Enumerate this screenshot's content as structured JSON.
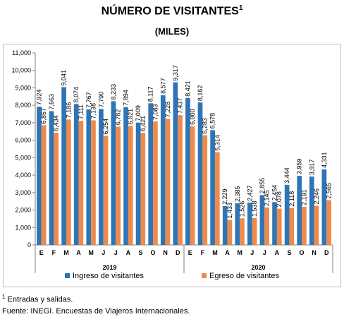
{
  "title": "NÚMERO DE VISITANTES",
  "title_sup": "1",
  "subtitle": "(MILES)",
  "notes": {
    "note1_sup": "1",
    "note1": "Entradas y salidas.",
    "source": "Fuente: INEGI. Encuestas de Viajeros Internacionales."
  },
  "chart_data": {
    "type": "bar",
    "categories": [
      "E",
      "F",
      "M",
      "A",
      "M",
      "J",
      "J",
      "A",
      "S",
      "O",
      "N",
      "D",
      "E",
      "F",
      "M",
      "A",
      "M",
      "J",
      "J",
      "A",
      "S",
      "O",
      "N",
      "D"
    ],
    "groups": [
      {
        "label": "2019",
        "count": 12
      },
      {
        "label": "2020",
        "count": 12
      }
    ],
    "series": [
      {
        "name": "Ingreso de visitantes",
        "color": "#2e75b6",
        "values": [
          7924,
          7663,
          9041,
          8074,
          7767,
          7790,
          8233,
          7894,
          7009,
          8117,
          8577,
          9317,
          8421,
          8162,
          6578,
          2229,
          2385,
          2427,
          2855,
          2454,
          3444,
          3959,
          3917,
          4331
        ],
        "labels": [
          "7,924",
          "7,663",
          "9,041",
          "8,074",
          "7,767",
          "7,790",
          "8,233",
          "7,894",
          "7,009",
          "8,117",
          "8,577",
          "9,317",
          "8,421",
          "8,162",
          "6,578",
          "2,229",
          "2,385",
          "2,427",
          "2,855",
          "2,454",
          "3,444",
          "3,959",
          "3,917",
          "4,331"
        ]
      },
      {
        "name": "Egreso de visitantes",
        "color": "#ed8a4c",
        "values": [
          6857,
          6434,
          7186,
          7111,
          7138,
          6254,
          6782,
          6821,
          6421,
          7083,
          7228,
          7437,
          6800,
          6283,
          5314,
          1433,
          1526,
          1538,
          2145,
          2078,
          2118,
          2191,
          2246,
          2565
        ],
        "labels": [
          "6,857",
          "6,434",
          "7,186",
          "7,111",
          "7,138",
          "6,254",
          "6,782",
          "6,821",
          "6,421",
          "7,083",
          "7,228",
          "7,437",
          "6,800",
          "6,283",
          "5,314",
          "1,433",
          "1,526",
          "1,538",
          "2,145",
          "2,078",
          "2,118",
          "2,191",
          "2,246",
          "2,565"
        ]
      }
    ],
    "ylim": [
      0,
      11000
    ],
    "yticks": [
      0,
      1000,
      2000,
      3000,
      4000,
      5000,
      6000,
      7000,
      8000,
      9000,
      10000,
      11000
    ],
    "ytick_labels": [
      "0",
      "1,000",
      "2,000",
      "3,000",
      "4,000",
      "5,000",
      "6,000",
      "7,000",
      "8,000",
      "9,000",
      "10,000",
      "11,000"
    ],
    "grid": false,
    "legend_position": "bottom"
  }
}
